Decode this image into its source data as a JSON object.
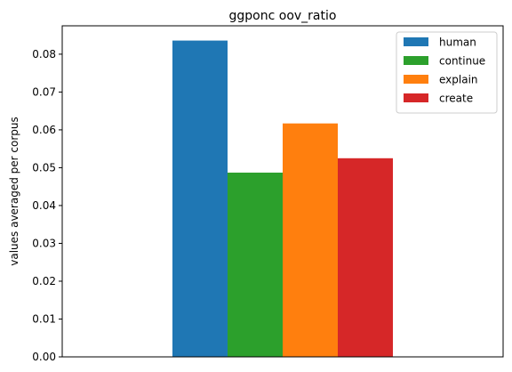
{
  "chart_data": {
    "type": "bar",
    "title": "ggponc oov_ratio",
    "xlabel": "",
    "ylabel": "values averaged per corpus",
    "ylim": [
      0,
      0.0875
    ],
    "yticks": [
      "0.00",
      "0.01",
      "0.02",
      "0.03",
      "0.04",
      "0.05",
      "0.06",
      "0.07",
      "0.08"
    ],
    "grid": false,
    "legend_position": "top-right",
    "series": [
      {
        "name": "human",
        "value": 0.0836,
        "color": "#1f77b4"
      },
      {
        "name": "continue",
        "value": 0.0487,
        "color": "#2ca02c"
      },
      {
        "name": "explain",
        "value": 0.0617,
        "color": "#ff7f0e"
      },
      {
        "name": "create",
        "value": 0.0525,
        "color": "#d62728"
      }
    ]
  }
}
